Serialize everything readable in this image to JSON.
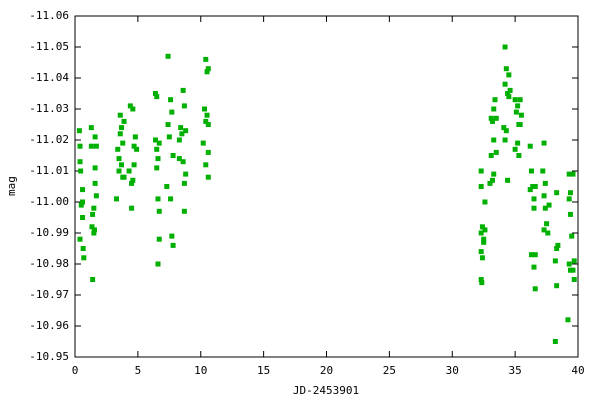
{
  "chart_data": {
    "type": "scatter",
    "x_label": "JD-2453901",
    "y_label": "mag",
    "color": "#00b000",
    "xlim": [
      0,
      40
    ],
    "xticks": [
      0,
      5,
      10,
      15,
      20,
      25,
      30,
      35,
      40
    ],
    "ylim": [
      -10.95,
      -11.06
    ],
    "yticks": [
      -11.06,
      -11.05,
      -11.04,
      -11.03,
      -11.02,
      -11.01,
      {
        "value": -11,
        "label": "-11.00"
      },
      -10.99,
      -10.98,
      -10.97,
      -10.96,
      -10.95
    ],
    "x": [
      0.4,
      0.4,
      0.45,
      0.5,
      0.4,
      0.6,
      0.6,
      0.65,
      0.7,
      0.35,
      0.6,
      1.3,
      1.3,
      1.35,
      1.5,
      1.4,
      1.4,
      1.6,
      1.7,
      1.6,
      1.6,
      1.7,
      1.5,
      1.55,
      3.4,
      3.5,
      3.3,
      3.6,
      3.7,
      3.6,
      3.5,
      3.8,
      3.9,
      3.8,
      3.7,
      3.9,
      4.4,
      4.3,
      4.5,
      4.6,
      4.7,
      4.6,
      4.5,
      4.8,
      4.9,
      4.7,
      6.4,
      6.5,
      6.4,
      6.5,
      6.6,
      6.6,
      6.7,
      6.6,
      6.7,
      6.7,
      6.5,
      7.4,
      7.6,
      7.7,
      7.4,
      7.5,
      7.8,
      7.3,
      7.7,
      7.8,
      7.6,
      8.6,
      8.7,
      8.4,
      8.5,
      8.3,
      8.3,
      8.6,
      8.8,
      8.7,
      8.7,
      8.8,
      10.4,
      10.6,
      10.5,
      10.3,
      10.5,
      10.4,
      10.6,
      10.2,
      10.6,
      10.4,
      10.6,
      32.3,
      32.3,
      32.4,
      32.3,
      32.5,
      32.3,
      32.4,
      32.3,
      32.35,
      32.6,
      32.6,
      32.5,
      33.1,
      33.2,
      33.3,
      33.1,
      33.3,
      33.2,
      33.0,
      33.4,
      33.3,
      33.5,
      33.5,
      34.2,
      34.3,
      34.2,
      34.4,
      34.1,
      34.3,
      34.2,
      34.4,
      34.5,
      34.6,
      34.5,
      35.0,
      35.2,
      35.1,
      35.3,
      35.2,
      35.0,
      35.4,
      35.5,
      35.4,
      35.3,
      36.2,
      36.3,
      36.4,
      36.2,
      36.3,
      36.6,
      36.5,
      36.5,
      36.6,
      36.5,
      36.6,
      37.3,
      37.2,
      37.4,
      37.3,
      37.4,
      37.5,
      37.3,
      37.7,
      37.6,
      38.3,
      38.4,
      38.3,
      38.2,
      38.3,
      38.2,
      39.3,
      39.4,
      39.3,
      39.4,
      39.5,
      39.3,
      39.4,
      39.2,
      39.6,
      39.7,
      39.6,
      39.7
    ],
    "values": [
      -11.018,
      -11.013,
      -11.01,
      -10.999,
      -10.988,
      -11.004,
      -10.995,
      -10.985,
      -10.982,
      -11.023,
      -11.0,
      -11.024,
      -11.018,
      -10.992,
      -10.99,
      -10.996,
      -10.975,
      -11.021,
      -11.018,
      -11.011,
      -11.006,
      -11.002,
      -10.998,
      -10.991,
      -11.017,
      -11.01,
      -11.001,
      -11.028,
      -11.024,
      -11.022,
      -11.014,
      -11.008,
      -11.026,
      -11.019,
      -11.012,
      -11.008,
      -11.031,
      -11.01,
      -11.006,
      -11.03,
      -11.018,
      -11.007,
      -10.998,
      -11.021,
      -11.017,
      -11.012,
      -11.035,
      -11.034,
      -11.02,
      -11.017,
      -11.014,
      -10.98,
      -11.019,
      -11.001,
      -10.997,
      -10.988,
      -11.011,
      -11.047,
      -11.033,
      -11.029,
      -11.025,
      -11.021,
      -11.015,
      -11.005,
      -10.989,
      -10.986,
      -11.001,
      -11.036,
      -11.031,
      -11.024,
      -11.022,
      -11.02,
      -11.014,
      -11.013,
      -11.009,
      -11.006,
      -10.997,
      -11.023,
      -11.046,
      -11.043,
      -11.042,
      -11.03,
      -11.028,
      -11.026,
      -11.025,
      -11.019,
      -11.016,
      -11.012,
      -11.008,
      -11.01,
      -11.005,
      -10.992,
      -10.99,
      -10.988,
      -10.984,
      -10.982,
      -10.975,
      -10.974,
      -11.0,
      -10.991,
      -10.987,
      -11.027,
      -11.026,
      -11.02,
      -11.015,
      -11.009,
      -11.007,
      -11.006,
      -11.033,
      -11.03,
      -11.027,
      -11.016,
      -11.05,
      -11.043,
      -11.038,
      -11.035,
      -11.024,
      -11.023,
      -11.02,
      -11.007,
      -11.041,
      -11.036,
      -11.034,
      -11.033,
      -11.031,
      -11.029,
      -11.025,
      -11.019,
      -11.017,
      -11.033,
      -11.028,
      -11.025,
      -11.015,
      -11.018,
      -11.01,
      -11.005,
      -11.004,
      -10.983,
      -11.005,
      -11.001,
      -10.998,
      -10.983,
      -10.979,
      -10.972,
      -11.019,
      -11.01,
      -11.006,
      -11.002,
      -10.998,
      -10.993,
      -10.991,
      -10.999,
      -10.99,
      -11.003,
      -10.986,
      -10.985,
      -10.981,
      -10.973,
      -10.955,
      -11.009,
      -11.003,
      -11.001,
      -10.996,
      -10.989,
      -10.98,
      -10.978,
      -10.962,
      -11.009,
      -10.981,
      -10.978,
      -10.975
    ]
  }
}
